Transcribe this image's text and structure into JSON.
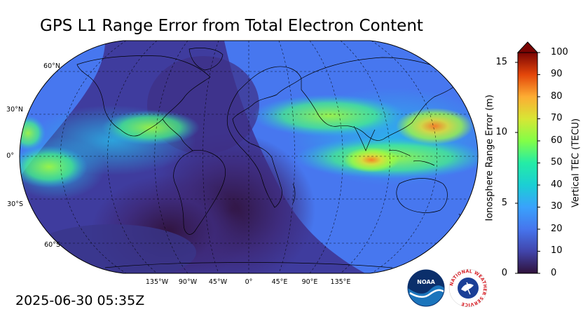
{
  "title": "GPS L1 Range Error from Total Electron Content",
  "timestamp": "2025-06-30 05:35Z",
  "map": {
    "projection": "robinson",
    "lat_labels": [
      "60°N",
      "30°N",
      "0°",
      "30°S",
      "60°S"
    ],
    "lon_labels": [
      "135°W",
      "90°W",
      "45°W",
      "0°",
      "45°E",
      "90°E",
      "135°E"
    ]
  },
  "colorbar": {
    "left_label": "Ionosphere Range Error (m)",
    "right_label": "Vertical TEC (TECU)",
    "left_ticks": [
      "15",
      "10",
      "5",
      "0"
    ],
    "right_ticks": [
      "100",
      "90",
      "80",
      "70",
      "60",
      "50",
      "40",
      "30",
      "20",
      "10",
      "0"
    ],
    "colormap": "turbo",
    "extend": "max"
  },
  "logos": {
    "noaa": "NOAA",
    "nws": "NATIONAL WEATHER SERVICE"
  },
  "colors": {
    "low": "#30123b",
    "mid_low": "#466be3",
    "mid": "#28bceb",
    "mid_high": "#a4fc3c",
    "high": "#fb7e21",
    "max": "#7a0403"
  }
}
